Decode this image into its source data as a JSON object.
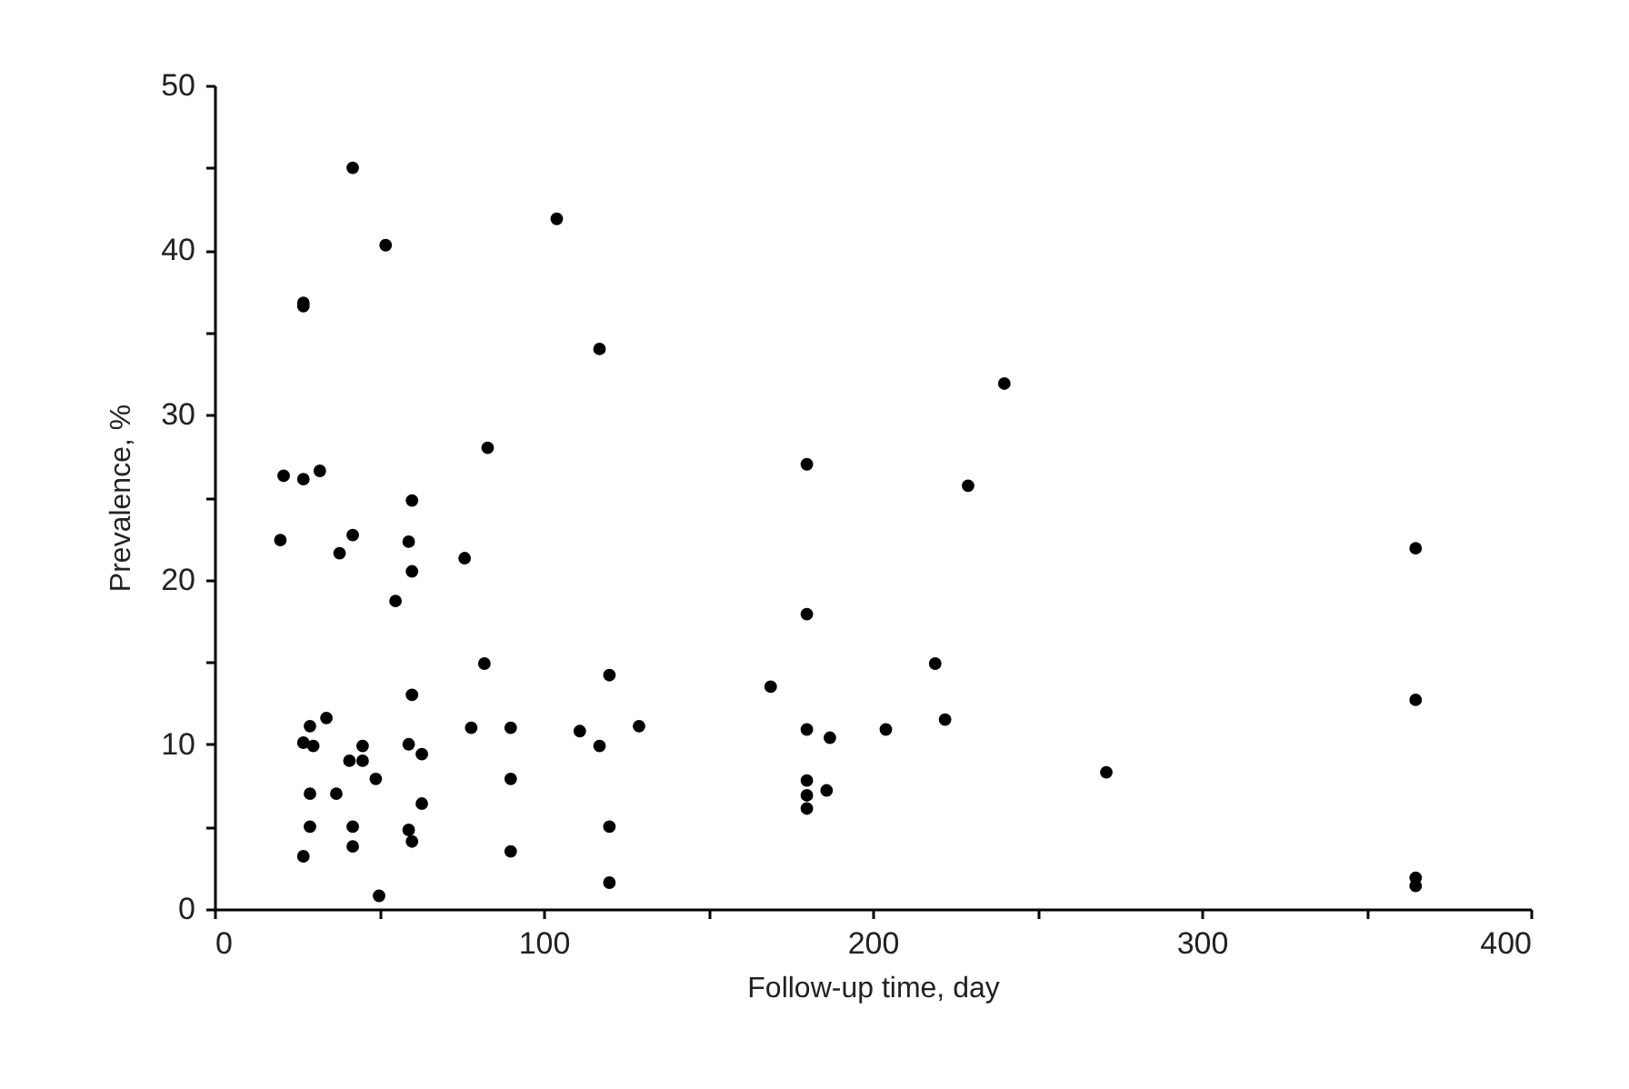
{
  "chart_data": {
    "type": "scatter",
    "xlabel": "Follow-up  time, day",
    "ylabel": "Prevalence, %",
    "xlim": [
      0,
      400
    ],
    "ylim": [
      0,
      50
    ],
    "xticks": [
      0,
      {
        "value": 50,
        "label": null
      },
      100,
      {
        "value": 150,
        "label": null
      },
      200,
      {
        "value": 250,
        "label": null
      },
      300,
      {
        "value": 350,
        "label": null
      },
      400
    ],
    "yticks": [
      0,
      {
        "value": 5,
        "label": null
      },
      10,
      {
        "value": 15,
        "label": null
      },
      20,
      {
        "value": 25,
        "label": null
      },
      30,
      {
        "value": 35,
        "label": null
      },
      40,
      {
        "value": 45,
        "label": null
      },
      50
    ],
    "grid": false,
    "legend": false,
    "marker": "circle",
    "series": [
      {
        "color": "#000000",
        "x": [
          42,
          52,
          27,
          27,
          21,
          27,
          32,
          60,
          83,
          20,
          42,
          38,
          59,
          60,
          76,
          55,
          82,
          60,
          34,
          29,
          27,
          30,
          45,
          41,
          45,
          49,
          59,
          63,
          78,
          90,
          90,
          29,
          37,
          63,
          29,
          42,
          59,
          60,
          27,
          42,
          90,
          50,
          104,
          117,
          180,
          240,
          229,
          180,
          120,
          169,
          219,
          222,
          111,
          117,
          129,
          180,
          187,
          204,
          180,
          180,
          180,
          186,
          120,
          120,
          271,
          365,
          365,
          365,
          365
        ],
        "values": [
          45,
          40.3,
          36.8,
          36.6,
          26.3,
          26.1,
          26.6,
          24.8,
          28,
          22.4,
          22.7,
          21.6,
          22.3,
          20.5,
          21.3,
          18.7,
          14.9,
          13,
          11.6,
          11.1,
          10.1,
          9.9,
          9.9,
          9,
          9,
          7.9,
          10,
          9.4,
          11,
          11,
          7.9,
          7,
          7,
          6.4,
          5,
          5,
          4.8,
          4.1,
          3.2,
          3.8,
          3.5,
          0.8,
          41.9,
          34,
          27,
          31.9,
          25.7,
          17.9,
          14.2,
          13.5,
          14.9,
          11.5,
          10.8,
          9.9,
          11.1,
          10.9,
          10.4,
          10.9,
          7.8,
          6.9,
          6.1,
          7.2,
          5,
          1.6,
          8.3,
          21.9,
          12.7,
          1.9,
          1.4
        ]
      }
    ]
  }
}
